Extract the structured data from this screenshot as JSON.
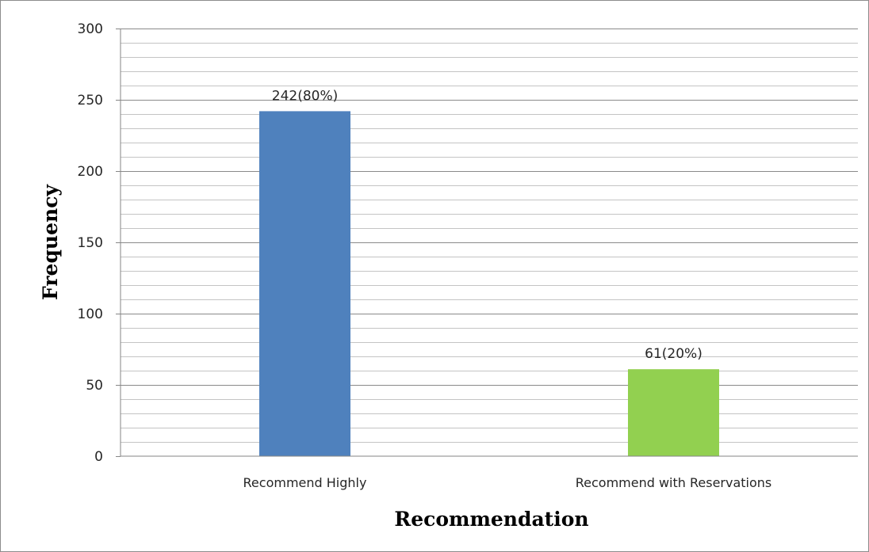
{
  "chart_data": {
    "type": "bar",
    "categories": [
      "Recommend Highly",
      "Recommend with Reservations"
    ],
    "values": [
      242,
      61
    ],
    "data_labels": [
      "242(80%)",
      "61(20%)"
    ],
    "bar_colors": [
      "#4f81bd",
      "#92d050"
    ],
    "xlabel": "Recommendation",
    "ylabel": "Frequency",
    "ylim": [
      0,
      300
    ],
    "yticks": [
      0,
      50,
      100,
      150,
      200,
      250,
      300
    ],
    "minor_grid_step": 10,
    "grid": true,
    "legend": "none"
  }
}
